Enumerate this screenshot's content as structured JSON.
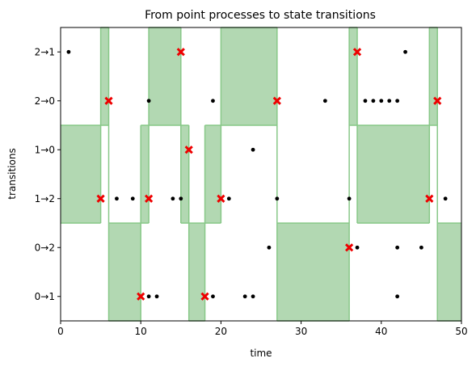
{
  "chart_data": {
    "type": "scatter",
    "title": "From point processes to state transitions",
    "xlabel": "time",
    "ylabel": "transitions",
    "xlim": [
      0,
      50
    ],
    "xticks": [
      0,
      10,
      20,
      30,
      40,
      50
    ],
    "categories": [
      "0→1",
      "0→2",
      "1→2",
      "1→0",
      "2→0",
      "2→1"
    ],
    "grid": false,
    "colors": {
      "state_fill": "#b2d8b2",
      "state_line": "#88c888",
      "events": "#000000",
      "transitions": "#ee0000"
    },
    "state_segments": [
      {
        "state": 1,
        "x0": 0,
        "x1": 5
      },
      {
        "state": 2,
        "x0": 5,
        "x1": 6
      },
      {
        "state": 0,
        "x0": 6,
        "x1": 10
      },
      {
        "state": 1,
        "x0": 10,
        "x1": 11
      },
      {
        "state": 2,
        "x0": 11,
        "x1": 15
      },
      {
        "state": 1,
        "x0": 15,
        "x1": 16
      },
      {
        "state": 0,
        "x0": 16,
        "x1": 18
      },
      {
        "state": 1,
        "x0": 18,
        "x1": 20
      },
      {
        "state": 2,
        "x0": 20,
        "x1": 27
      },
      {
        "state": 0,
        "x0": 27,
        "x1": 36
      },
      {
        "state": 2,
        "x0": 36,
        "x1": 37
      },
      {
        "state": 1,
        "x0": 37,
        "x1": 46
      },
      {
        "state": 2,
        "x0": 46,
        "x1": 47
      },
      {
        "state": 0,
        "x0": 47,
        "x1": 50
      }
    ],
    "state_bands": {
      "0": [
        -0.5,
        1.5
      ],
      "1": [
        1.5,
        3.5
      ],
      "2": [
        3.5,
        5.5
      ]
    },
    "events": [
      {
        "x": 1,
        "y": 5
      },
      {
        "x": 43,
        "y": 5
      },
      {
        "x": 11,
        "y": 4
      },
      {
        "x": 19,
        "y": 4
      },
      {
        "x": 33,
        "y": 4
      },
      {
        "x": 38,
        "y": 4
      },
      {
        "x": 39,
        "y": 4
      },
      {
        "x": 40,
        "y": 4
      },
      {
        "x": 41,
        "y": 4
      },
      {
        "x": 42,
        "y": 4
      },
      {
        "x": 24,
        "y": 3
      },
      {
        "x": 7,
        "y": 2
      },
      {
        "x": 9,
        "y": 2
      },
      {
        "x": 14,
        "y": 2
      },
      {
        "x": 15,
        "y": 2
      },
      {
        "x": 21,
        "y": 2
      },
      {
        "x": 27,
        "y": 2
      },
      {
        "x": 36,
        "y": 2
      },
      {
        "x": 48,
        "y": 2
      },
      {
        "x": 26,
        "y": 1
      },
      {
        "x": 37,
        "y": 1
      },
      {
        "x": 42,
        "y": 1
      },
      {
        "x": 45,
        "y": 1
      },
      {
        "x": 11,
        "y": 0
      },
      {
        "x": 12,
        "y": 0
      },
      {
        "x": 19,
        "y": 0
      },
      {
        "x": 23,
        "y": 0
      },
      {
        "x": 24,
        "y": 0
      },
      {
        "x": 42,
        "y": 0
      }
    ],
    "transitions": [
      {
        "x": 5,
        "y": 2
      },
      {
        "x": 6,
        "y": 4
      },
      {
        "x": 10,
        "y": 0
      },
      {
        "x": 11,
        "y": 2
      },
      {
        "x": 15,
        "y": 5
      },
      {
        "x": 16,
        "y": 3
      },
      {
        "x": 18,
        "y": 0
      },
      {
        "x": 20,
        "y": 2
      },
      {
        "x": 27,
        "y": 4
      },
      {
        "x": 36,
        "y": 1
      },
      {
        "x": 37,
        "y": 5
      },
      {
        "x": 46,
        "y": 2
      },
      {
        "x": 47,
        "y": 4
      }
    ]
  }
}
